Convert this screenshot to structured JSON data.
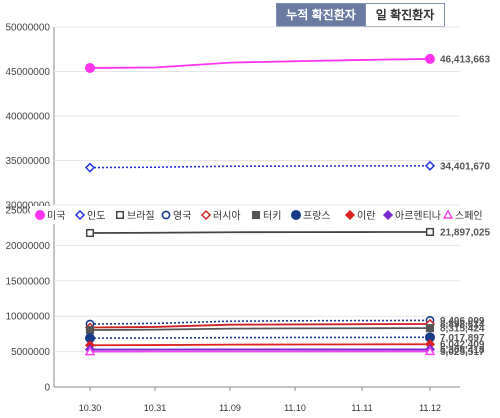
{
  "tabs": [
    {
      "label": "누적 확진환자",
      "active": true
    },
    {
      "label": "일 확진환자",
      "active": false
    }
  ],
  "chart_data": {
    "type": "line",
    "x": [
      "10.30",
      "10.31",
      "11.09",
      "11.10",
      "11.11",
      "11.12"
    ],
    "upper_panel": {
      "yticks": [
        "30000000",
        "35000000",
        "40000000",
        "45000000",
        "50000000"
      ],
      "ylim": [
        30000000,
        50000000
      ]
    },
    "lower_panel": {
      "yticks": [
        "0",
        "5000000",
        "10000000",
        "15000000",
        "20000000",
        "25000000"
      ],
      "ylim": [
        0,
        25000000
      ]
    },
    "legend_position": "between panels",
    "series": [
      {
        "name": "미국",
        "color": "#ff33ee",
        "marker": "circle-filled",
        "line": "solid",
        "panel": "upper",
        "values": [
          45400000,
          45450000,
          46000000,
          46150000,
          46300000,
          46413663
        ],
        "label": "46,413,663"
      },
      {
        "name": "인도",
        "color": "#2233dd",
        "marker": "diamond-open",
        "line": "dotted",
        "panel": "upper",
        "values": [
          34200000,
          34250000,
          34350000,
          34370000,
          34390000,
          34401670
        ],
        "label": "34,401,670"
      },
      {
        "name": "브라질",
        "color": "#444444",
        "marker": "square-open",
        "line": "solid",
        "panel": "lower",
        "values": [
          21750000,
          21790000,
          21860000,
          21875000,
          21887000,
          21897025
        ],
        "label": "21,897,025"
      },
      {
        "name": "영국",
        "color": "#1a3a8a",
        "marker": "circle-open",
        "line": "dotted",
        "panel": "lower",
        "values": [
          8900000,
          8980000,
          9300000,
          9350000,
          9380000,
          9406009
        ],
        "label": "9,406,009"
      },
      {
        "name": "러시아",
        "color": "#cc2222",
        "marker": "diamond-open",
        "line": "solid",
        "panel": "lower",
        "values": [
          8400000,
          8480000,
          8800000,
          8840000,
          8870000,
          8898614
        ],
        "label": "8,898,614"
      },
      {
        "name": "터키",
        "color": "#555555",
        "marker": "square-filled",
        "line": "solid",
        "panel": "lower",
        "values": [
          8050000,
          8100000,
          8250000,
          8280000,
          8300000,
          8315424
        ],
        "label": "8,315,424"
      },
      {
        "name": "프랑스",
        "color": "#1a3a8a",
        "marker": "circle-filled",
        "line": "dotted",
        "panel": "lower",
        "values": [
          6900000,
          6920000,
          6980000,
          6995000,
          7005000,
          7017897
        ],
        "label": "7,017,897"
      },
      {
        "name": "이란",
        "color": "#dd2222",
        "marker": "diamond-filled",
        "line": "solid",
        "panel": "lower",
        "values": [
          5900000,
          5920000,
          5990000,
          6005000,
          6020000,
          6042409
        ],
        "label": "6,042,409"
      },
      {
        "name": "아르헨티나",
        "color": "#7a2ad0",
        "marker": "diamond-filled",
        "line": "solid",
        "panel": "lower",
        "values": [
          5290000,
          5300000,
          5305000,
          5306000,
          5307000,
          5308418
        ],
        "label": "5,308,418"
      },
      {
        "name": "스페인",
        "color": "#ee44ee",
        "marker": "triangle-open",
        "line": "solid",
        "panel": "lower",
        "values": [
          5000000,
          5010000,
          5018000,
          5019000,
          5020000,
          5025517
        ],
        "label": "5,025,517"
      }
    ]
  }
}
